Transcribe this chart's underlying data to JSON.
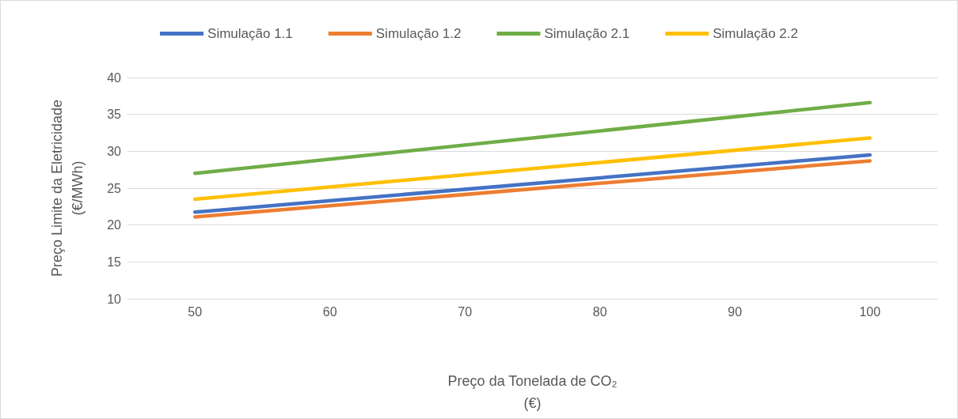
{
  "chart_data": {
    "type": "line",
    "xlabel": "Preço da Tonelada de CO₂\n(€)",
    "ylabel": "Preço Limite da Eletricidade\n(€/MWh)",
    "x": [
      50,
      100
    ],
    "series": [
      {
        "name": "Simulação 1.1",
        "color": "#4472c4",
        "values": [
          21.75,
          29.5
        ]
      },
      {
        "name": "Simulação 1.2",
        "color": "#ed7d31",
        "values": [
          21.1,
          28.7
        ]
      },
      {
        "name": "Simulação 2.1",
        "color": "#70ad47",
        "values": [
          27,
          36.6
        ]
      },
      {
        "name": "Simulação 2.2",
        "color": "#ffc000",
        "values": [
          23.5,
          31.8
        ]
      }
    ],
    "xlim": [
      45,
      105
    ],
    "xticks": [
      50,
      60,
      70,
      80,
      90,
      100
    ],
    "ylim": [
      10,
      40
    ],
    "yticks": [
      10,
      15,
      20,
      25,
      30,
      35,
      40
    ],
    "grid": "y",
    "legend": "top",
    "marker": "none",
    "line_style": "solid"
  }
}
